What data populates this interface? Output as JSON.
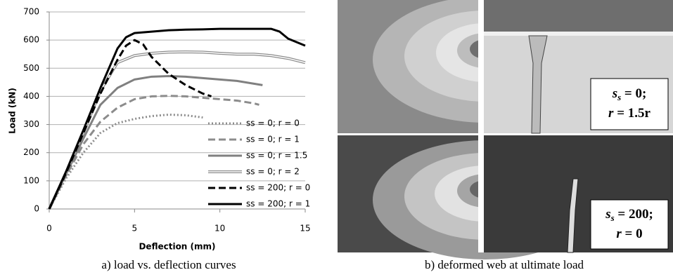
{
  "chart_data": {
    "type": "line",
    "x_label": "Deflection (mm)",
    "y_label": "Load (kN)",
    "xlim": [
      0,
      15
    ],
    "xticks": [
      0,
      5,
      10,
      15
    ],
    "ylim": [
      0,
      700
    ],
    "yticks": [
      0,
      100,
      200,
      300,
      400,
      500,
      600,
      700
    ],
    "grid": true,
    "legend": "lower right",
    "series": [
      {
        "name": "ss = 0; r = 0",
        "color": "#8c8c8c",
        "style": "dotted",
        "x": [
          0,
          1,
          2,
          3,
          4,
          5,
          6,
          7,
          8,
          9
        ],
        "values": [
          0,
          110,
          200,
          270,
          305,
          320,
          330,
          335,
          333,
          325
        ]
      },
      {
        "name": "ss = 0; r = 1",
        "color": "#8c8c8c",
        "style": "dashed",
        "x": [
          0,
          1,
          2,
          3,
          4,
          5,
          6,
          7,
          8,
          9,
          10,
          11,
          12,
          12.3
        ],
        "values": [
          0,
          120,
          230,
          310,
          360,
          390,
          400,
          402,
          400,
          395,
          390,
          385,
          375,
          370
        ]
      },
      {
        "name": "ss = 0; r = 1.5",
        "color": "#808080",
        "style": "solid",
        "x": [
          0,
          1,
          2,
          3,
          4,
          5,
          6,
          7,
          8,
          9,
          10,
          11,
          12,
          12.5
        ],
        "values": [
          0,
          125,
          250,
          370,
          430,
          460,
          470,
          472,
          470,
          465,
          460,
          455,
          445,
          440
        ]
      },
      {
        "name": "ss = 0; r = 2",
        "color": "#8c8c8c",
        "style": "double",
        "x": [
          0,
          1,
          2,
          3,
          4,
          5,
          6,
          7,
          8,
          9,
          10,
          11,
          12,
          13,
          14,
          15
        ],
        "values": [
          0,
          130,
          270,
          420,
          520,
          545,
          553,
          557,
          558,
          557,
          553,
          550,
          550,
          545,
          535,
          520
        ]
      },
      {
        "name": "ss = 200; r = 0",
        "color": "#000000",
        "style": "dashed",
        "x": [
          0,
          1,
          2,
          3,
          4,
          4.5,
          5,
          5.5,
          6,
          7,
          8,
          9,
          9.5
        ],
        "values": [
          0,
          130,
          270,
          410,
          530,
          580,
          600,
          585,
          540,
          480,
          440,
          410,
          400
        ]
      },
      {
        "name": "ss = 200; r = 1",
        "color": "#000000",
        "style": "solid",
        "x": [
          0,
          1,
          2,
          3,
          4,
          4.5,
          5,
          6,
          7,
          8,
          9,
          10,
          11,
          12,
          13,
          13.5,
          14,
          15
        ],
        "values": [
          0,
          135,
          280,
          430,
          570,
          610,
          625,
          630,
          635,
          637,
          638,
          640,
          640,
          640,
          640,
          630,
          605,
          580
        ]
      }
    ]
  },
  "captions": [
    "a) load vs. deflection curves",
    "b) deformed web at ultimate load"
  ],
  "panel_labels": [
    [
      {
        "var": "s",
        "sub": "s",
        "text": " = 0;"
      },
      {
        "var": "r",
        "text": " = 1.5r"
      }
    ],
    [
      {
        "var": "s",
        "sub": "s",
        "text": " = 200;"
      },
      {
        "var": "r",
        "text": " = 0"
      }
    ]
  ]
}
